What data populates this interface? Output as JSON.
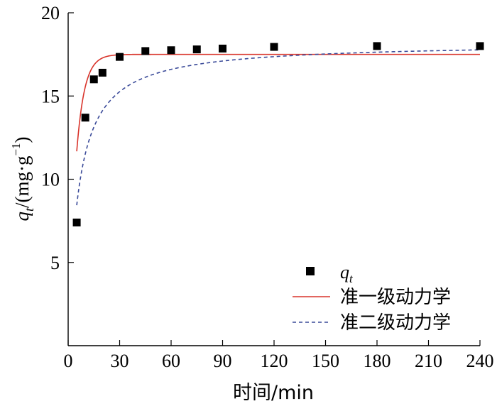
{
  "chart_data": {
    "type": "scatter",
    "xlabel": "时间/min",
    "ylabel": {
      "q": "q",
      "sub": "t",
      "rest": "/(mg·g",
      "sup": "−1",
      "close": ")"
    },
    "xlim": [
      0,
      240
    ],
    "ylim": [
      0,
      20
    ],
    "x_ticks": [
      0,
      30,
      60,
      90,
      120,
      150,
      180,
      210,
      240
    ],
    "y_ticks": [
      5,
      10,
      15,
      20
    ],
    "grid": false,
    "legend_position": "bottom-right",
    "series": [
      {
        "name_main": "q",
        "name_sub": "t",
        "kind": "points",
        "color": "#000000",
        "x": [
          5,
          10,
          15,
          20,
          30,
          45,
          60,
          75,
          90,
          120,
          180,
          240
        ],
        "y": [
          7.4,
          13.7,
          16.0,
          16.4,
          17.35,
          17.7,
          17.75,
          17.8,
          17.85,
          17.95,
          18.0,
          18.0
        ]
      },
      {
        "name": "准一级动力学",
        "kind": "line",
        "model": "pfo",
        "qe": 17.5,
        "k1": 0.22,
        "x_start": 5,
        "color": "#d9342b"
      },
      {
        "name": "准二级动力学",
        "kind": "dashed",
        "model": "pso",
        "qe": 18.2,
        "k2": 0.0095,
        "x_start": 5,
        "color": "#3a4a99"
      }
    ]
  }
}
